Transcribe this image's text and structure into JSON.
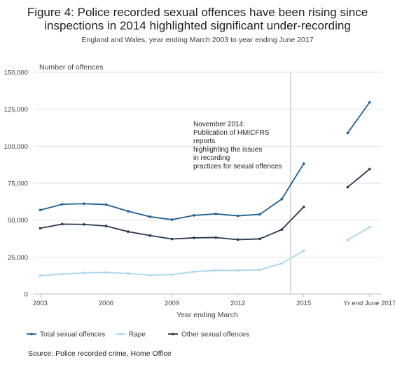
{
  "title_line1": "Figure 4: Police recorded sexual offences have been rising since",
  "title_line2": "inspections in 2014 highlighted significant under-recording",
  "subtitle": "England and Wales, year ending March 2003 to year ending June 2017",
  "source": "Source: Police recorded crime, Home Office",
  "chart_data": {
    "type": "line",
    "ylabel": "Number of offences",
    "xlabel": "Year ending March",
    "ylim": [
      0,
      150000
    ],
    "yticks": [
      0,
      25000,
      50000,
      75000,
      100000,
      125000,
      150000
    ],
    "ytick_labels": [
      "0",
      "25,000",
      "50,000",
      "75,000",
      "100,000",
      "125,000",
      "150,000"
    ],
    "x_positions": [
      2003,
      2004,
      2005,
      2006,
      2007,
      2008,
      2009,
      2010,
      2011,
      2012,
      2013,
      2014,
      2015
    ],
    "xtick_labels": [
      {
        "x": 2003,
        "label": "2003"
      },
      {
        "x": 2006,
        "label": "2006"
      },
      {
        "x": 2009,
        "label": "2009"
      },
      {
        "x": 2012,
        "label": "2012"
      },
      {
        "x": 2015,
        "label": "2015"
      },
      {
        "x": 2018,
        "label": "Yr end June 2017"
      }
    ],
    "grid": true,
    "legend_position": "bottom",
    "series": [
      {
        "name": "Total sexual offences",
        "color": "#206095",
        "values": [
          56800,
          60700,
          61100,
          60500,
          56000,
          52300,
          50300,
          53200,
          54200,
          52900,
          53900,
          64200,
          88200
        ],
        "extra_x": [
          2017,
          2018
        ],
        "extra_values": [
          108900,
          129700
        ]
      },
      {
        "name": "Rape",
        "color": "#a8d5ec",
        "values": [
          12400,
          13500,
          14300,
          14600,
          13900,
          12800,
          13100,
          15100,
          16000,
          16000,
          16400,
          20700,
          29300
        ],
        "extra_x": [
          2017,
          2018
        ],
        "extra_values": [
          36600,
          45200
        ]
      },
      {
        "name": "Other sexual offences",
        "color": "#27374d",
        "values": [
          44500,
          47300,
          47100,
          46000,
          42200,
          39600,
          37200,
          38000,
          38200,
          36800,
          37300,
          43600,
          58900
        ],
        "extra_x": [
          2017,
          2018
        ],
        "extra_values": [
          72300,
          84500
        ]
      }
    ],
    "reference_line": {
      "x": 2014.4
    },
    "annotation": [
      "November 2014:",
      "Publication of HMICFRS",
      "reports",
      "highlighting the issues",
      "in recording",
      "practices for sexual offences"
    ]
  }
}
